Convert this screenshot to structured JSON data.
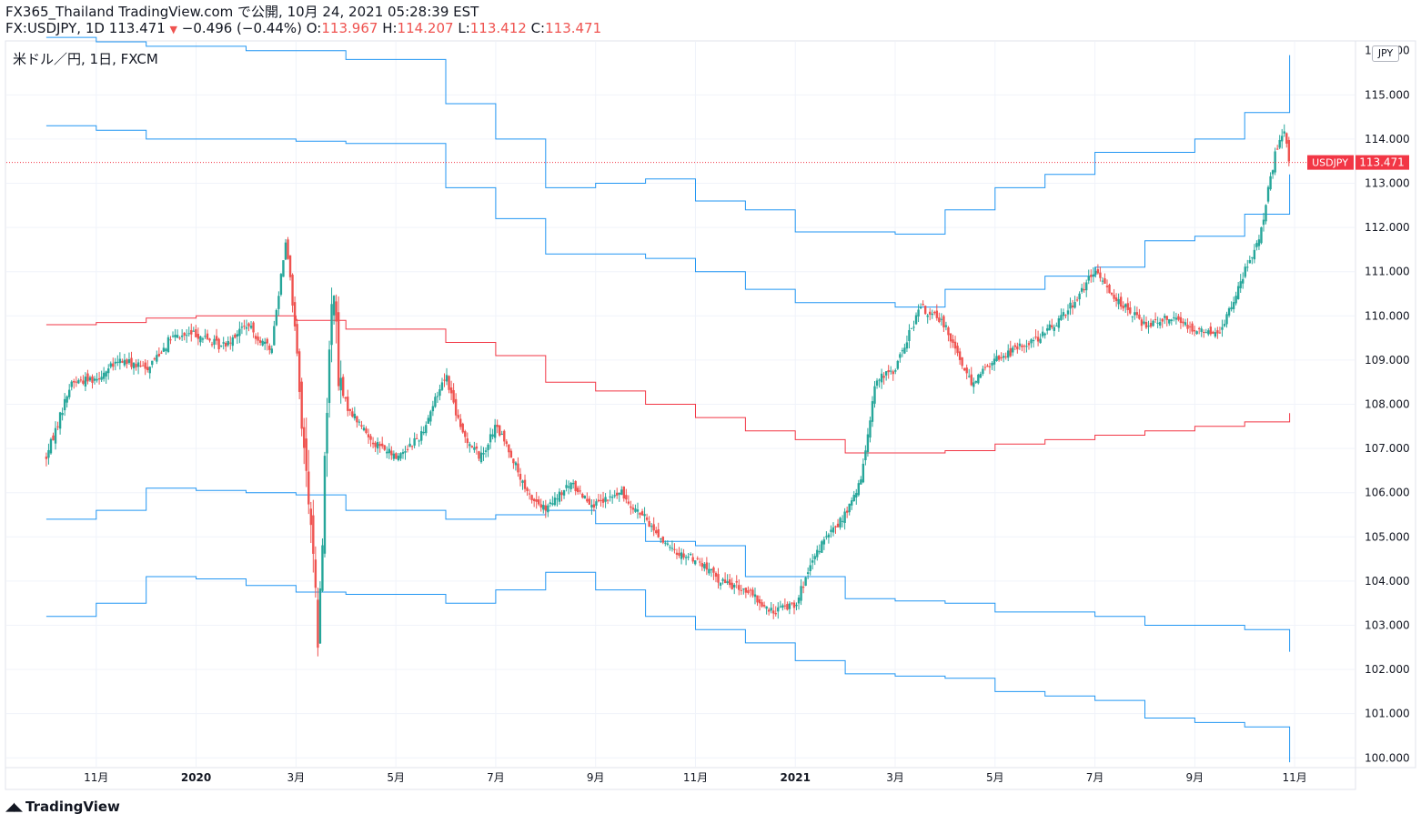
{
  "header": {
    "line1": "FX365_Thailand TradingView.com で公開, 10月 24, 2021 05:28:39 EST",
    "symbol_part": "FX:USDJPY, 1D 113.471",
    "change_arrow": "▼",
    "change_part": "−0.496 (−0.44%)",
    "o_label": "O:",
    "o_value": "113.967",
    "h_label": "H:",
    "h_value": "114.207",
    "l_label": "L:",
    "l_value": "113.412",
    "c_label": "C:",
    "c_value": "113.471"
  },
  "legend": "米ドル／円, 1日, FXCM",
  "currency_button": "JPY",
  "footer_logo": "TradingView",
  "colors": {
    "up": "#26a69a",
    "down": "#ef5350",
    "band": "#2196f3",
    "middle": "#f23645",
    "price_line": "#f23645",
    "grid": "#f0f3fa",
    "axis_text": "#131722"
  },
  "chart_data": {
    "type": "candlestick",
    "symbol": "USDJPY",
    "title": "米ドル／円, 1日, FXCM",
    "ylim": [
      99.8,
      116.2
    ],
    "y_ticks": [
      "115.000",
      "114.000",
      "113.000",
      "112.000",
      "111.000",
      "110.000",
      "109.000",
      "108.000",
      "107.000",
      "106.000",
      "105.000",
      "104.000",
      "103.000",
      "102.000",
      "101.000",
      "100.000"
    ],
    "y_tick_top_partial": "116.000",
    "last_price_label": "USDJPY",
    "last_price_value": "113.471",
    "last_price": 113.471,
    "x_tick_labels": [
      {
        "label": "11月",
        "bold": false,
        "m": 1
      },
      {
        "label": "2020",
        "bold": true,
        "m": 3
      },
      {
        "label": "3月",
        "bold": false,
        "m": 5
      },
      {
        "label": "5月",
        "bold": false,
        "m": 7
      },
      {
        "label": "7月",
        "bold": false,
        "m": 9
      },
      {
        "label": "9月",
        "bold": false,
        "m": 11
      },
      {
        "label": "11月",
        "bold": false,
        "m": 13
      },
      {
        "label": "2021",
        "bold": true,
        "m": 15
      },
      {
        "label": "3月",
        "bold": false,
        "m": 17
      },
      {
        "label": "5月",
        "bold": false,
        "m": 19
      },
      {
        "label": "7月",
        "bold": false,
        "m": 21
      },
      {
        "label": "9月",
        "bold": false,
        "m": 23
      },
      {
        "label": "11月",
        "bold": false,
        "m": 25
      }
    ],
    "x_axis_note": "m = months since 2019-10-01",
    "close_path": [
      [
        0,
        106.8
      ],
      [
        0.5,
        108.5
      ],
      [
        1,
        108.6
      ],
      [
        1.5,
        109.0
      ],
      [
        2,
        108.8
      ],
      [
        2.5,
        109.5
      ],
      [
        3,
        109.6
      ],
      [
        3.5,
        109.3
      ],
      [
        4,
        109.8
      ],
      [
        4.5,
        109.2
      ],
      [
        4.8,
        111.8
      ],
      [
        5.0,
        109.5
      ],
      [
        5.15,
        107.0
      ],
      [
        5.3,
        105.5
      ],
      [
        5.45,
        102.4
      ],
      [
        5.6,
        107.5
      ],
      [
        5.75,
        111.0
      ],
      [
        5.85,
        108.5
      ],
      [
        6,
        108.0
      ],
      [
        6.5,
        107.2
      ],
      [
        7,
        106.8
      ],
      [
        7.5,
        107.3
      ],
      [
        8,
        108.7
      ],
      [
        8.3,
        107.4
      ],
      [
        8.7,
        106.8
      ],
      [
        9,
        107.5
      ],
      [
        9.3,
        106.9
      ],
      [
        9.6,
        106.0
      ],
      [
        10,
        105.6
      ],
      [
        10.5,
        106.2
      ],
      [
        11,
        105.7
      ],
      [
        11.5,
        106.0
      ],
      [
        12,
        105.4
      ],
      [
        12.5,
        104.7
      ],
      [
        13,
        104.5
      ],
      [
        13.5,
        104.0
      ],
      [
        14,
        103.8
      ],
      [
        14.5,
        103.3
      ],
      [
        15,
        103.5
      ],
      [
        15.5,
        104.8
      ],
      [
        16,
        105.5
      ],
      [
        16.3,
        106.2
      ],
      [
        16.6,
        108.5
      ],
      [
        17,
        108.8
      ],
      [
        17.5,
        110.2
      ],
      [
        18,
        109.8
      ],
      [
        18.5,
        108.5
      ],
      [
        19,
        109.0
      ],
      [
        19.5,
        109.3
      ],
      [
        20,
        109.6
      ],
      [
        20.5,
        110.2
      ],
      [
        21,
        111.0
      ],
      [
        21.5,
        110.3
      ],
      [
        22,
        109.8
      ],
      [
        22.5,
        110.0
      ],
      [
        23,
        109.7
      ],
      [
        23.5,
        109.6
      ],
      [
        24,
        111.0
      ],
      [
        24.3,
        111.8
      ],
      [
        24.6,
        113.6
      ],
      [
        24.8,
        114.2
      ],
      [
        24.9,
        113.471
      ]
    ],
    "series": [
      {
        "name": "upper_band_outer",
        "color": "#2196f3",
        "steps": [
          [
            0,
            116.3
          ],
          [
            1,
            116.2
          ],
          [
            2,
            116.1
          ],
          [
            3,
            116.1
          ],
          [
            4,
            116.0
          ],
          [
            5,
            116.0
          ],
          [
            6,
            115.8
          ],
          [
            8,
            114.8
          ],
          [
            9,
            114.0
          ],
          [
            10,
            112.9
          ],
          [
            11,
            113.0
          ],
          [
            12,
            113.1
          ],
          [
            13,
            112.6
          ],
          [
            14,
            112.4
          ],
          [
            15,
            111.9
          ],
          [
            16,
            111.9
          ],
          [
            17,
            111.85
          ],
          [
            18,
            112.4
          ],
          [
            19,
            112.9
          ],
          [
            20,
            113.2
          ],
          [
            21,
            113.7
          ],
          [
            22,
            113.7
          ],
          [
            23,
            114.0
          ],
          [
            24,
            114.6
          ],
          [
            24.9,
            114.6
          ]
        ],
        "end": [
          24.9,
          115.9
        ]
      },
      {
        "name": "upper_band_inner",
        "color": "#2196f3",
        "steps": [
          [
            0,
            114.3
          ],
          [
            1,
            114.2
          ],
          [
            2,
            114.0
          ],
          [
            3,
            114.0
          ],
          [
            4,
            114.0
          ],
          [
            5,
            113.95
          ],
          [
            6,
            113.9
          ],
          [
            8,
            112.9
          ],
          [
            9,
            112.2
          ],
          [
            10,
            111.4
          ],
          [
            11,
            111.4
          ],
          [
            12,
            111.3
          ],
          [
            13,
            111.0
          ],
          [
            14,
            110.6
          ],
          [
            15,
            110.3
          ],
          [
            16,
            110.3
          ],
          [
            17,
            110.2
          ],
          [
            18,
            110.6
          ],
          [
            19,
            110.6
          ],
          [
            20,
            110.9
          ],
          [
            21,
            111.1
          ],
          [
            22,
            111.7
          ],
          [
            23,
            111.8
          ],
          [
            24,
            112.3
          ],
          [
            24.9,
            112.3
          ]
        ],
        "end": [
          24.9,
          113.2
        ]
      },
      {
        "name": "middle_line",
        "color": "#f23645",
        "steps": [
          [
            0,
            109.8
          ],
          [
            1,
            109.85
          ],
          [
            2,
            109.95
          ],
          [
            3,
            110.0
          ],
          [
            4,
            110.0
          ],
          [
            5,
            109.9
          ],
          [
            6,
            109.7
          ],
          [
            8,
            109.4
          ],
          [
            9,
            109.1
          ],
          [
            10,
            108.5
          ],
          [
            11,
            108.3
          ],
          [
            12,
            108.0
          ],
          [
            13,
            107.7
          ],
          [
            14,
            107.4
          ],
          [
            15,
            107.2
          ],
          [
            16,
            106.9
          ],
          [
            17,
            106.9
          ],
          [
            18,
            106.95
          ],
          [
            19,
            107.1
          ],
          [
            20,
            107.2
          ],
          [
            21,
            107.3
          ],
          [
            22,
            107.4
          ],
          [
            23,
            107.5
          ],
          [
            24,
            107.6
          ],
          [
            24.9,
            107.6
          ]
        ],
        "end": [
          24.9,
          107.8
        ]
      },
      {
        "name": "lower_band_inner",
        "color": "#2196f3",
        "steps": [
          [
            0,
            105.4
          ],
          [
            1,
            105.6
          ],
          [
            2,
            106.1
          ],
          [
            3,
            106.05
          ],
          [
            4,
            106.0
          ],
          [
            5,
            105.95
          ],
          [
            6,
            105.6
          ],
          [
            8,
            105.4
          ],
          [
            9,
            105.5
          ],
          [
            10,
            105.6
          ],
          [
            11,
            105.3
          ],
          [
            12,
            104.9
          ],
          [
            13,
            104.8
          ],
          [
            14,
            104.1
          ],
          [
            15,
            104.1
          ],
          [
            16,
            103.6
          ],
          [
            17,
            103.55
          ],
          [
            18,
            103.5
          ],
          [
            19,
            103.3
          ],
          [
            20,
            103.3
          ],
          [
            21,
            103.2
          ],
          [
            22,
            103.0
          ],
          [
            23,
            103.0
          ],
          [
            24,
            102.9
          ],
          [
            24.9,
            102.8
          ]
        ],
        "end": [
          24.9,
          102.4
        ]
      },
      {
        "name": "lower_band_outer",
        "color": "#2196f3",
        "steps": [
          [
            0,
            103.2
          ],
          [
            1,
            103.5
          ],
          [
            2,
            104.1
          ],
          [
            3,
            104.05
          ],
          [
            4,
            103.9
          ],
          [
            5,
            103.75
          ],
          [
            6,
            103.7
          ],
          [
            8,
            103.5
          ],
          [
            9,
            103.8
          ],
          [
            10,
            104.2
          ],
          [
            11,
            103.8
          ],
          [
            12,
            103.2
          ],
          [
            13,
            102.9
          ],
          [
            14,
            102.6
          ],
          [
            15,
            102.2
          ],
          [
            16,
            101.9
          ],
          [
            17,
            101.85
          ],
          [
            18,
            101.8
          ],
          [
            19,
            101.5
          ],
          [
            20,
            101.4
          ],
          [
            21,
            101.3
          ],
          [
            22,
            100.9
          ],
          [
            23,
            100.8
          ],
          [
            24,
            100.7
          ],
          [
            24.9,
            100.5
          ]
        ],
        "end": [
          24.9,
          99.9
        ]
      }
    ]
  }
}
